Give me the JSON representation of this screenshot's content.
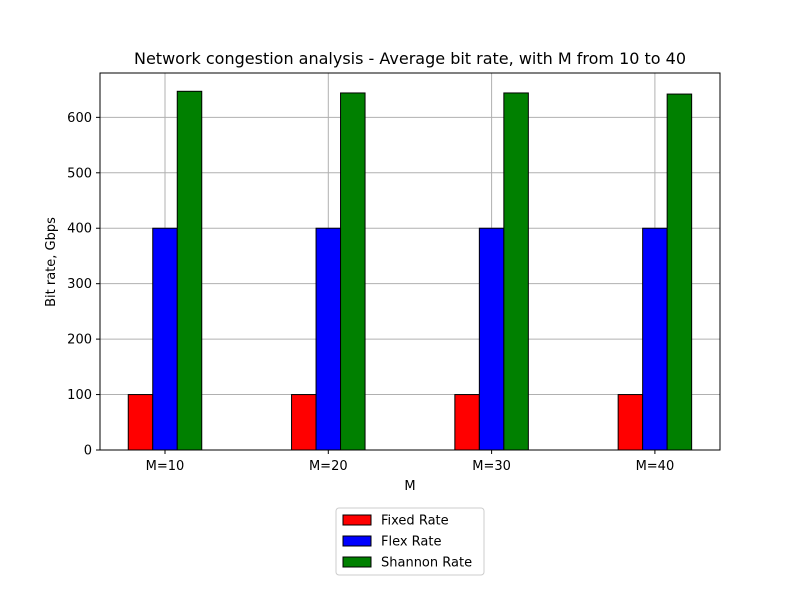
{
  "chart_data": {
    "type": "bar",
    "title": "Network congestion analysis - Average bit rate, with M from 10 to 40",
    "xlabel": "M",
    "ylabel": "Bit rate, Gbps",
    "categories": [
      "M=10",
      "M=20",
      "M=30",
      "M=40"
    ],
    "series": [
      {
        "name": "Fixed Rate",
        "color": "#ff0000",
        "values": [
          100,
          100,
          100,
          100
        ]
      },
      {
        "name": "Flex Rate",
        "color": "#0000ff",
        "values": [
          400,
          400,
          400,
          400
        ]
      },
      {
        "name": "Shannon Rate",
        "color": "#008000",
        "values": [
          647,
          644,
          644,
          642
        ]
      }
    ],
    "ylim": [
      0,
      680
    ],
    "yticks": [
      0,
      100,
      200,
      300,
      400,
      500,
      600
    ],
    "grid": true,
    "legend_position": "below"
  }
}
